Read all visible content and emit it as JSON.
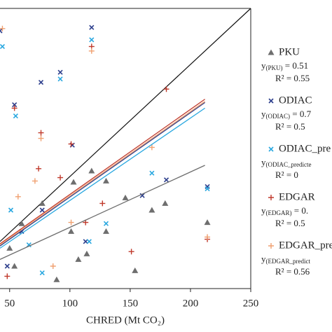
{
  "chart_data": {
    "type": "scatter",
    "x_label": "CHRED (Mt CO₂)",
    "xlim": [
      42,
      250
    ],
    "ylim": [
      0,
      250
    ],
    "xticks": [
      50,
      100,
      150,
      200,
      250
    ],
    "series": [
      {
        "name": "PKU",
        "color": "#6e6e6e",
        "marker": "triangle",
        "x": [
          118,
          103,
          130,
          179,
          214,
          168,
          146,
          154,
          114,
          101,
          77,
          60,
          50,
          89,
          54,
          130,
          107
        ],
        "values": [
          105,
          95,
          96,
          76,
          59,
          70,
          81,
          16,
          31,
          51,
          76,
          58,
          36,
          8,
          20,
          51,
          26
        ],
        "fit": {
          "x": [
            42,
            212
          ],
          "y": [
            26,
            110
          ]
        },
        "annotation": {
          "y": "y",
          "sub": "(PKU)",
          "rest": " = 0.51",
          "r2": "R² = 0.55"
        }
      },
      {
        "name": "ODIAC",
        "color": "#2c3e8c",
        "marker": "x",
        "x": [
          118,
          92,
          76,
          102,
          180,
          214,
          160,
          42,
          54,
          77,
          113,
          60,
          48
        ],
        "values": [
          233,
          193,
          184,
          128,
          97,
          91,
          83,
          230,
          164,
          70,
          42,
          51,
          20
        ],
        "fit": {
          "x": [
            42,
            212
          ],
          "y": [
            38,
            166
          ]
        },
        "annotation": {
          "y": "y",
          "sub": "(ODIAC)",
          "rest": " = 0.7",
          "r2": "R² = 0.5"
        }
      },
      {
        "name": "ODIAC_pre",
        "color": "#2aa8e0",
        "marker": "x",
        "x": [
          118,
          44,
          92,
          55,
          168,
          214,
          116,
          130,
          77,
          66,
          51
        ],
        "values": [
          222,
          216,
          187,
          154,
          103,
          89,
          42,
          58,
          14,
          39,
          70
        ],
        "fit": {
          "x": [
            42,
            212
          ],
          "y": [
            36,
            161
          ]
        },
        "annotation": {
          "y": "y",
          "sub": "(ODIAC_predicte",
          "rest": "",
          "r2": "R² = 0"
        }
      },
      {
        "name": "EDGAR",
        "color": "#c0392b",
        "marker": "plus",
        "x": [
          118,
          180,
          101,
          76,
          54,
          92,
          127,
          214,
          151,
          74,
          48,
          113
        ],
        "values": [
          216,
          178,
          129,
          139,
          161,
          99,
          76,
          44,
          33,
          107,
          11,
          59
        ],
        "fit": {
          "x": [
            42,
            212
          ],
          "y": [
            40,
            169
          ]
        },
        "annotation": {
          "y": "y",
          "sub": "(EDGAR)",
          "rest": " = 0.",
          "r2": "R² = 0.5"
        }
      },
      {
        "name": "EDGAR_pre",
        "color": "#f0a070",
        "marker": "plus",
        "x": [
          118,
          44,
          76,
          168,
          71,
          214,
          101,
          57,
          86
        ],
        "values": [
          212,
          232,
          134,
          126,
          96,
          46,
          59,
          82,
          20
        ],
        "fit": {
          "x": [
            42,
            212
          ],
          "y": [
            39,
            167
          ]
        },
        "annotation": {
          "y": "y",
          "sub": "(EDGAR_predict",
          "rest": "",
          "r2": "R² = 0.56"
        }
      }
    ]
  }
}
